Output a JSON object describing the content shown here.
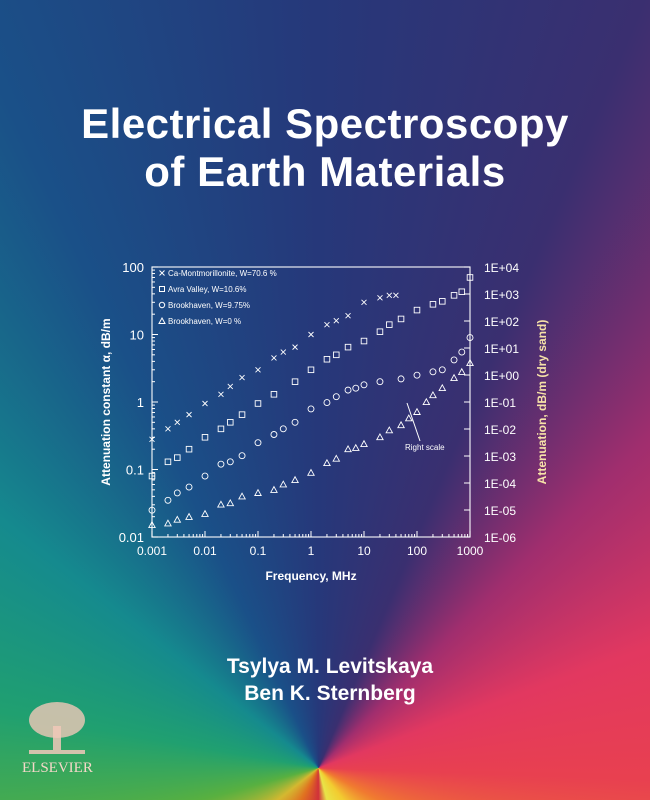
{
  "cover": {
    "title_line1": "Electrical Spectroscopy",
    "title_line2": "of Earth Materials",
    "authors": [
      "Tsylya M. Levitskaya",
      "Ben K. Sternberg"
    ],
    "publisher": "ELSEVIER"
  },
  "chart_data": {
    "type": "scatter",
    "title": "",
    "xlabel": "Frequency, MHz",
    "ylabel": "Attenuation constant α, dB/m",
    "y2label": "Attenuation, dB/m (dry sand)",
    "xscale": "log",
    "yscale": "log",
    "y2scale": "log",
    "xlim": [
      0.001,
      1000
    ],
    "ylim": [
      0.01,
      100
    ],
    "y2lim": [
      1e-06,
      10000.0
    ],
    "xticks": [
      "0.001",
      "0.01",
      "0.1",
      "1",
      "10",
      "100",
      "1000"
    ],
    "yticks": [
      "0.01",
      "0.1",
      "1",
      "10",
      "100"
    ],
    "y2ticks": [
      "1E-06",
      "1E-05",
      "1E-04",
      "1E-03",
      "1E-02",
      "1E-01",
      "1E+00",
      "1E+01",
      "1E+02",
      "1E+03",
      "1E+04"
    ],
    "grid": false,
    "legend_position": "top-left",
    "annotation": "Right scale",
    "series": [
      {
        "name": "Ca-Montmorillonite, W=70.6 %",
        "marker": "x",
        "axis": "left",
        "x": [
          0.001,
          0.002,
          0.003,
          0.005,
          0.01,
          0.02,
          0.03,
          0.05,
          0.1,
          0.2,
          0.3,
          0.5,
          1,
          2,
          3,
          5,
          10,
          20,
          30,
          40
        ],
        "y": [
          0.28,
          0.4,
          0.5,
          0.65,
          0.95,
          1.3,
          1.7,
          2.3,
          3,
          4.5,
          5.5,
          6.5,
          10,
          14,
          16,
          19,
          30,
          35,
          38,
          38
        ]
      },
      {
        "name": "Avra Valley, W=10.6%",
        "marker": "square",
        "axis": "left",
        "x": [
          0.001,
          0.002,
          0.003,
          0.005,
          0.01,
          0.02,
          0.03,
          0.05,
          0.1,
          0.2,
          0.5,
          1,
          2,
          3,
          5,
          10,
          20,
          30,
          50,
          100,
          200,
          300,
          500,
          700,
          1000
        ],
        "y": [
          0.08,
          0.13,
          0.15,
          0.2,
          0.3,
          0.4,
          0.5,
          0.65,
          0.95,
          1.3,
          2,
          3,
          4.3,
          5,
          6.5,
          8,
          11,
          14,
          17,
          23,
          28,
          31,
          38,
          43,
          70
        ]
      },
      {
        "name": "Brookhaven, W=9.75%",
        "marker": "circle",
        "axis": "left",
        "x": [
          0.001,
          0.002,
          0.003,
          0.005,
          0.01,
          0.02,
          0.03,
          0.05,
          0.1,
          0.2,
          0.3,
          0.5,
          1,
          2,
          3,
          5,
          7,
          10,
          20,
          50,
          100,
          200,
          300,
          500,
          700,
          1000
        ],
        "y": [
          0.025,
          0.035,
          0.045,
          0.055,
          0.08,
          0.12,
          0.13,
          0.16,
          0.25,
          0.33,
          0.4,
          0.5,
          0.79,
          0.98,
          1.2,
          1.5,
          1.6,
          1.8,
          2.0,
          2.2,
          2.5,
          2.8,
          3.0,
          4.2,
          5.5,
          9
        ]
      },
      {
        "name": "Brookhaven, W=0 %",
        "marker": "triangle",
        "axis": "right",
        "x": [
          0.001,
          0.002,
          0.003,
          0.005,
          0.01,
          0.02,
          0.03,
          0.05,
          0.1,
          0.2,
          0.3,
          0.5,
          1,
          2,
          3,
          5,
          7,
          10,
          20,
          30,
          50,
          70,
          100,
          150,
          200,
          300,
          500,
          700,
          1000
        ],
        "y": [
          2.8e-06,
          3.2e-06,
          4.4e-06,
          5.6e-06,
          7.2e-06,
          1.6e-05,
          1.8e-05,
          3.2e-05,
          4.3e-05,
          5.6e-05,
          8.9e-05,
          0.00013,
          0.00024,
          0.00055,
          0.0008,
          0.0018,
          0.002,
          0.0028,
          0.005,
          0.009,
          0.014,
          0.025,
          0.043,
          0.1,
          0.18,
          0.33,
          0.78,
          1.3,
          2.8
        ]
      }
    ]
  },
  "colors": {
    "chart_ink": "#ffffff",
    "right_label": "#f6e2a8"
  }
}
